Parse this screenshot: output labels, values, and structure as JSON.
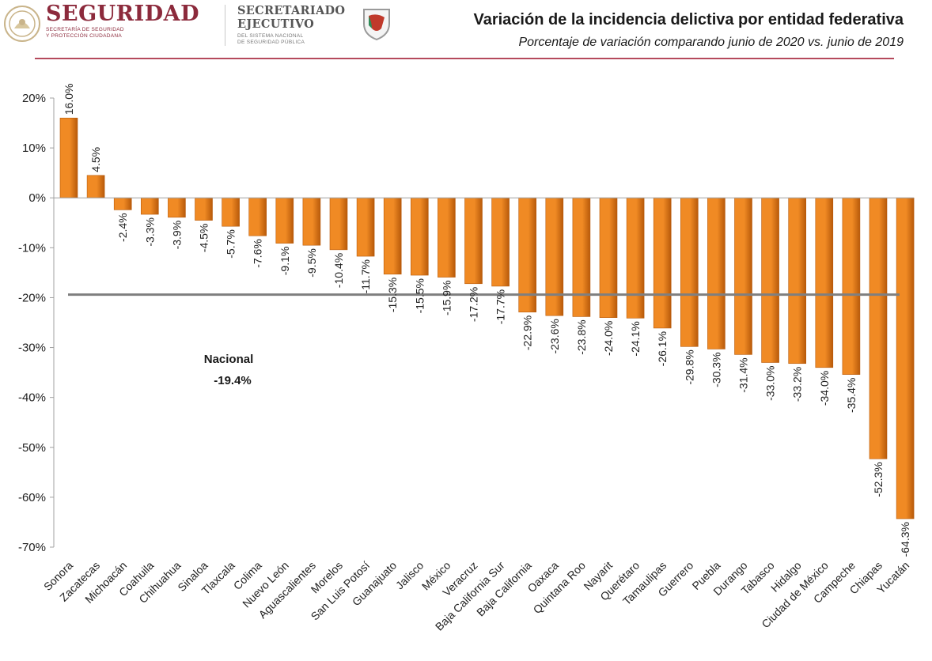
{
  "header": {
    "brand_name": "SEGURIDAD",
    "brand_sub_1": "SECRETARÍA DE SEGURIDAD",
    "brand_sub_2": "Y PROTECCIÓN CIUDADANA",
    "sec_name_1": "SECRETARIADO",
    "sec_name_2": "EJECUTIVO",
    "sec_sub_1": "DEL SISTEMA NACIONAL",
    "sec_sub_2": "DE SEGURIDAD PÚBLICA",
    "brand_color": "#8c2a3c",
    "rule_color": "#b54a5c"
  },
  "chart_data": {
    "type": "bar",
    "title": "Variación de la incidencia delictiva por entidad federativa",
    "subtitle": "Porcentaje de variación comparando junio de 2020 vs. junio de 2019",
    "xlabel": "",
    "ylabel": "",
    "ylim": [
      -70,
      20
    ],
    "yticks": [
      20,
      10,
      0,
      -10,
      -20,
      -30,
      -40,
      -50,
      -60,
      -70
    ],
    "ytick_labels": [
      "20%",
      "10%",
      "0%",
      "-10%",
      "-20%",
      "-30%",
      "-40%",
      "-50%",
      "-60%",
      "-70%"
    ],
    "categories": [
      "Sonora",
      "Zacatecas",
      "Michoacán",
      "Coahuila",
      "Chihuahua",
      "Sinaloa",
      "Tlaxcala",
      "Colima",
      "Nuevo León",
      "Aguascalientes",
      "Morelos",
      "San Luis Potosí",
      "Guanajuato",
      "Jalisco",
      "México",
      "Veracruz",
      "Baja California Sur",
      "Baja California",
      "Oaxaca",
      "Quintana Roo",
      "Nayarit",
      "Querétaro",
      "Tamaulipas",
      "Guerrero",
      "Puebla",
      "Durango",
      "Tabasco",
      "Hidalgo",
      "Ciudad de México",
      "Campeche",
      "Chiapas",
      "Yucatán"
    ],
    "values": [
      16.0,
      4.5,
      -2.4,
      -3.3,
      -3.9,
      -4.5,
      -5.7,
      -7.6,
      -9.1,
      -9.5,
      -10.4,
      -11.7,
      -15.3,
      -15.5,
      -15.9,
      -17.2,
      -17.7,
      -22.9,
      -23.6,
      -23.8,
      -24.0,
      -24.1,
      -26.1,
      -29.8,
      -30.3,
      -31.4,
      -33.0,
      -33.2,
      -34.0,
      -35.4,
      -52.3,
      -64.3
    ],
    "value_labels": [
      "16.0%",
      "4.5%",
      "-2.4%",
      "-3.3%",
      "-3.9%",
      "-4.5%",
      "-5.7%",
      "-7.6%",
      "-9.1%",
      "-9.5%",
      "-10.4%",
      "-11.7%",
      "-15.3%",
      "-15.5%",
      "-15.9%",
      "-17.2%",
      "-17.7%",
      "-22.9%",
      "-23.6%",
      "-23.8%",
      "-24.0%",
      "-24.1%",
      "-26.1%",
      "-29.8%",
      "-30.3%",
      "-31.4%",
      "-33.0%",
      "-33.2%",
      "-34.0%",
      "-35.4%",
      "-52.3%",
      "-64.3%"
    ],
    "reference_line": {
      "value": -19.4,
      "label": "Nacional",
      "value_label": "-19.4%"
    },
    "bar_color": "#f08a24",
    "bar_dark": "#b85a0a",
    "reference_color": "#7f7f7f",
    "grid": false,
    "legend": "none"
  }
}
